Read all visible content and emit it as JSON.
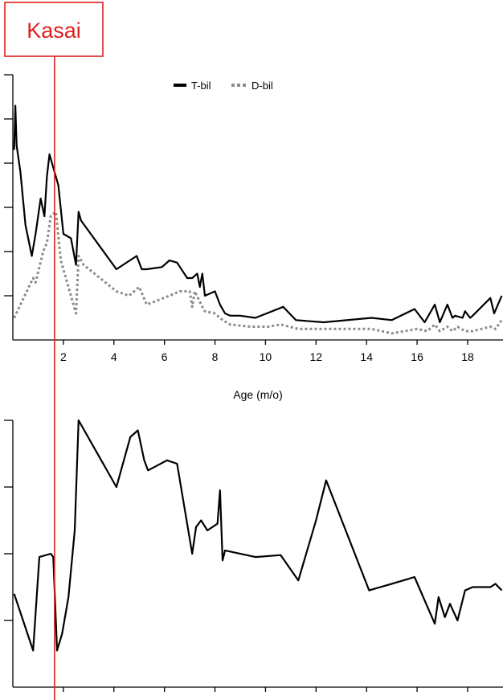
{
  "chart_data": [
    {
      "type": "line",
      "xlabel": "Age (m/o)",
      "x_ticks": [
        2,
        4,
        6,
        8,
        10,
        12,
        14,
        16,
        18
      ],
      "xlim": [
        0,
        19.4
      ],
      "ylim": [
        0,
        6
      ],
      "legend_position": "top-center",
      "series": [
        {
          "name": "T-bil",
          "style": "solid",
          "color": "#000000",
          "x": [
            0.05,
            0.1,
            0.15,
            0.3,
            0.5,
            0.75,
            0.9,
            1.1,
            1.25,
            1.35,
            1.45,
            1.6,
            1.8,
            2.0,
            2.3,
            2.5,
            2.6,
            2.7,
            4.1,
            4.9,
            5.1,
            5.3,
            5.9,
            6.2,
            6.5,
            6.9,
            7.1,
            7.3,
            7.4,
            7.5,
            7.6,
            8.0,
            8.2,
            8.4,
            8.6,
            9.0,
            9.6,
            10.7,
            11.2,
            12.3,
            14.2,
            15.0,
            15.9,
            16.3,
            16.7,
            16.9,
            17.2,
            17.4,
            17.5,
            17.8,
            17.9,
            18.1,
            18.2,
            18.9,
            19.05,
            19.35
          ],
          "y": [
            4.3,
            5.3,
            4.4,
            3.8,
            2.6,
            1.9,
            2.4,
            3.2,
            2.8,
            3.7,
            4.2,
            3.9,
            3.5,
            2.4,
            2.3,
            1.7,
            2.9,
            2.7,
            1.6,
            1.9,
            1.6,
            1.6,
            1.65,
            1.8,
            1.75,
            1.4,
            1.4,
            1.5,
            1.2,
            1.5,
            1.0,
            1.1,
            0.8,
            0.6,
            0.55,
            0.55,
            0.5,
            0.75,
            0.45,
            0.4,
            0.5,
            0.45,
            0.7,
            0.4,
            0.8,
            0.4,
            0.8,
            0.5,
            0.55,
            0.5,
            0.65,
            0.5,
            0.55,
            0.95,
            0.6,
            1.0
          ]
        },
        {
          "name": "D-bil",
          "style": "dotted",
          "color": "#8c8c8c",
          "x": [
            0.05,
            0.8,
            0.9,
            1.2,
            1.35,
            1.5,
            1.7,
            1.9,
            2.1,
            2.5,
            2.6,
            2.8,
            4.1,
            4.6,
            5.0,
            5.3,
            6.2,
            6.6,
            7.0,
            7.1,
            7.2,
            7.5,
            7.6,
            8.0,
            8.3,
            8.6,
            9.4,
            10.1,
            10.6,
            11.3,
            12.3,
            13.6,
            14.2,
            15.0,
            16.0,
            16.4,
            16.7,
            16.9,
            17.2,
            17.4,
            17.6,
            17.9,
            18.2,
            18.9,
            19.1,
            19.35
          ],
          "y": [
            0.5,
            1.4,
            1.3,
            2.0,
            2.2,
            2.8,
            2.9,
            1.8,
            1.4,
            0.6,
            1.9,
            1.7,
            1.1,
            1.0,
            1.2,
            0.8,
            1.0,
            1.1,
            1.1,
            0.75,
            1.1,
            0.75,
            0.65,
            0.6,
            0.45,
            0.35,
            0.3,
            0.3,
            0.35,
            0.25,
            0.25,
            0.25,
            0.25,
            0.15,
            0.25,
            0.2,
            0.35,
            0.2,
            0.3,
            0.2,
            0.3,
            0.2,
            0.2,
            0.3,
            0.25,
            0.45
          ]
        }
      ]
    },
    {
      "type": "line",
      "xlim": [
        0,
        19.4
      ],
      "ylim": [
        0,
        4
      ],
      "series": [
        {
          "style": "solid",
          "color": "#000000",
          "x": [
            0.05,
            0.8,
            1.05,
            1.5,
            1.6,
            1.75,
            1.95,
            2.2,
            2.45,
            2.6,
            4.1,
            4.65,
            4.95,
            5.2,
            5.35,
            6.1,
            6.5,
            7.1,
            7.25,
            7.45,
            7.7,
            8.1,
            8.2,
            8.3,
            8.4,
            9.6,
            10.6,
            11.3,
            12.0,
            12.4,
            14.1,
            15.0,
            15.9,
            16.7,
            16.85,
            17.1,
            17.3,
            17.6,
            17.9,
            18.2,
            18.9,
            19.1,
            19.35
          ],
          "y": [
            1.4,
            0.55,
            1.95,
            2.0,
            1.95,
            0.55,
            0.8,
            1.35,
            2.35,
            4.0,
            3.0,
            3.75,
            3.85,
            3.4,
            3.25,
            3.4,
            3.35,
            2.0,
            2.4,
            2.5,
            2.35,
            2.45,
            2.95,
            1.9,
            2.05,
            1.95,
            1.98,
            1.6,
            2.5,
            3.1,
            1.45,
            1.55,
            1.65,
            0.95,
            1.35,
            1.05,
            1.25,
            1.0,
            1.45,
            1.5,
            1.5,
            1.55,
            1.45
          ]
        }
      ]
    }
  ],
  "annotation": {
    "label": "Kasai",
    "x": 1.65,
    "color": "#e02020"
  }
}
